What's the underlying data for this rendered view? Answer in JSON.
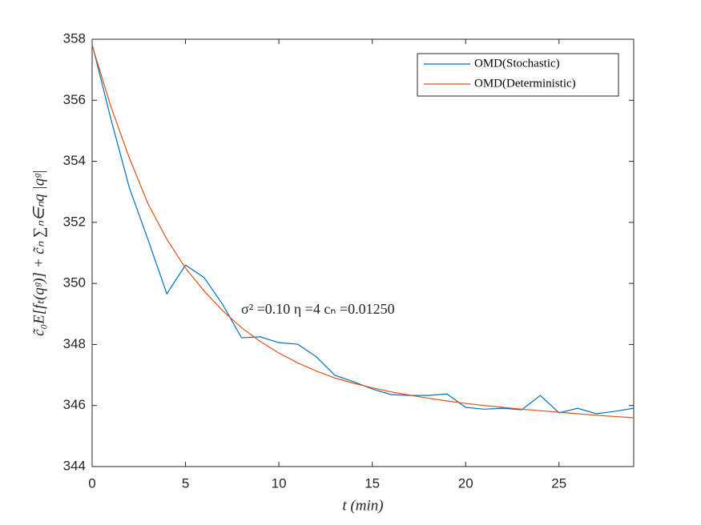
{
  "chart_data": {
    "type": "line",
    "xlabel": "t (min)",
    "ylabel": "c̃₀E[fₜ(qᵍ)] + c̃ₙ ∑ₙ∈ₙq |qᵍ|",
    "annotation": "σ² =0.10   η =4   cₙ =0.01250",
    "x": [
      0,
      1,
      2,
      3,
      4,
      5,
      6,
      7,
      8,
      9,
      10,
      11,
      12,
      13,
      14,
      15,
      16,
      17,
      18,
      19,
      20,
      21,
      22,
      23,
      24,
      25,
      26,
      27,
      28,
      29
    ],
    "series": [
      {
        "name": "OMD(Stochastic)",
        "color": "#0072bd",
        "values": [
          357.84,
          355.4,
          353.12,
          351.42,
          349.66,
          350.6,
          350.19,
          349.3,
          348.22,
          348.25,
          348.06,
          348.01,
          347.6,
          346.99,
          346.78,
          346.54,
          346.36,
          346.33,
          346.33,
          346.38,
          345.94,
          345.88,
          345.91,
          345.86,
          346.33,
          345.76,
          345.91,
          345.73,
          345.81,
          345.91
        ]
      },
      {
        "name": "OMD(Deterministic)",
        "color": "#d95319",
        "values": [
          357.8,
          355.8,
          354.1,
          352.6,
          351.45,
          350.5,
          349.75,
          349.1,
          348.55,
          348.1,
          347.72,
          347.4,
          347.13,
          346.9,
          346.73,
          346.58,
          346.45,
          346.34,
          346.24,
          346.15,
          346.07,
          346.0,
          345.94,
          345.88,
          345.83,
          345.78,
          345.73,
          345.68,
          345.64,
          345.6
        ]
      }
    ],
    "xlim": [
      0,
      29
    ],
    "xticks": [
      0,
      5,
      10,
      15,
      20,
      25
    ],
    "ylim": [
      344,
      358
    ],
    "yticks": [
      344,
      346,
      348,
      350,
      352,
      354,
      356,
      358
    ],
    "legend": "top-right",
    "grid": false
  }
}
